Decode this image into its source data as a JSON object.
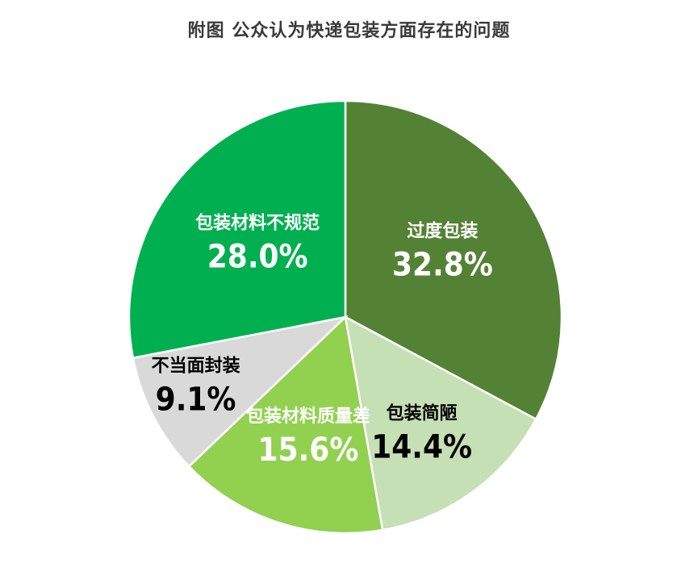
{
  "chart_data": {
    "type": "pie",
    "title": "附图 公众认为快递包装方面存在的问题",
    "slices": [
      {
        "label": "过度包装",
        "value": 32.8,
        "display": "32.8%",
        "color": "#548235",
        "text_color": "#ffffff"
      },
      {
        "label": "包装简陋",
        "value": 14.4,
        "display": "14.4%",
        "color": "#c5e0b4",
        "text_color": "#000000"
      },
      {
        "label": "包装材料质量差",
        "value": 15.6,
        "display": "15.6%",
        "color": "#92d050",
        "text_color": "#ffffff"
      },
      {
        "label": "不当面封装",
        "value": 9.1,
        "display": "9.1%",
        "color": "#d9d9d9",
        "text_color": "#000000"
      },
      {
        "label": "包装材料不规范",
        "value": 28.0,
        "display": "28.0%",
        "color": "#00b050",
        "text_color": "#ffffff"
      }
    ]
  }
}
